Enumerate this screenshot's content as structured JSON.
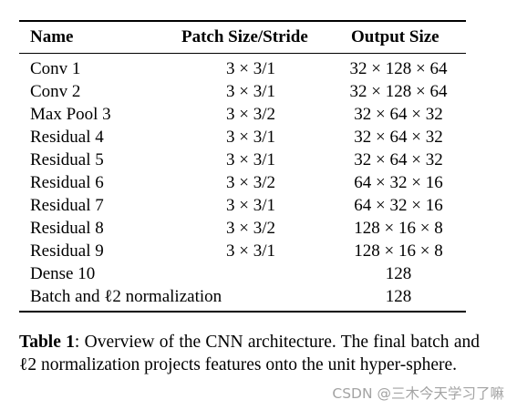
{
  "table": {
    "headers": [
      "Name",
      "Patch Size/Stride",
      "Output Size"
    ],
    "rows": [
      {
        "name": "Conv 1",
        "patch": "3 × 3/1",
        "output": "32 × 128 × 64"
      },
      {
        "name": "Conv 2",
        "patch": "3 × 3/1",
        "output": "32 × 128 × 64"
      },
      {
        "name": "Max Pool 3",
        "patch": "3 × 3/2",
        "output": "32 × 64 × 32"
      },
      {
        "name": "Residual 4",
        "patch": "3 × 3/1",
        "output": "32 × 64 × 32"
      },
      {
        "name": "Residual 5",
        "patch": "3 × 3/1",
        "output": "32 × 64 × 32"
      },
      {
        "name": "Residual 6",
        "patch": "3 × 3/2",
        "output": "64 × 32 × 16"
      },
      {
        "name": "Residual 7",
        "patch": "3 × 3/1",
        "output": "64 × 32 × 16"
      },
      {
        "name": "Residual 8",
        "patch": "3 × 3/2",
        "output": "128 × 16 × 8"
      },
      {
        "name": "Residual 9",
        "patch": "3 × 3/1",
        "output": "128 × 16 × 8"
      },
      {
        "name": "Dense 10",
        "patch": "",
        "output": "128"
      },
      {
        "name": "Batch and ℓ2 normalization",
        "patch": "",
        "output": "128"
      }
    ]
  },
  "caption": {
    "label": "Table 1",
    "text": ": Overview of the CNN architecture. The final batch and ℓ2 normalization projects features onto the unit hyper-sphere."
  },
  "watermark": "CSDN @三木今天学习了嘛"
}
